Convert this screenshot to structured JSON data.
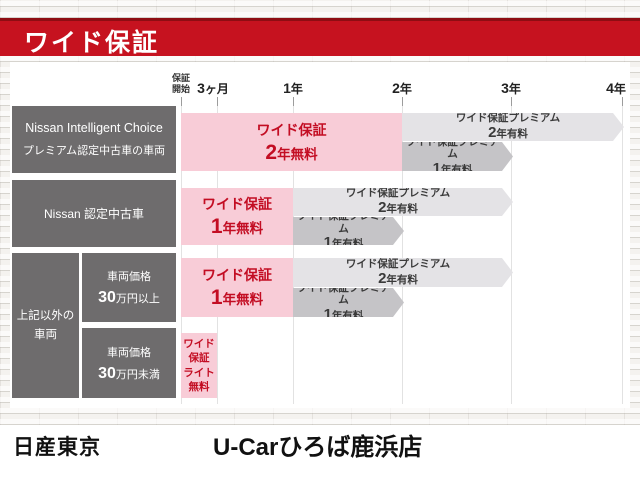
{
  "header": {
    "title": "ワイド保証"
  },
  "colors": {
    "accent_red": "#c6121f",
    "pink": "#f8ccd7",
    "text_red": "#c30d23",
    "arrow_light": "#e4e3e6",
    "arrow_dark": "#c5c4c7",
    "label_gray": "#6e6c6d"
  },
  "chart_data": {
    "type": "gantt",
    "x_axis": {
      "start_label": [
        "保証",
        "開始"
      ],
      "ticks": [
        {
          "label": "3ヶ月",
          "year": 0.25
        },
        {
          "label": "1年",
          "year": 1
        },
        {
          "label": "2年",
          "year": 2
        },
        {
          "label": "3年",
          "year": 3
        },
        {
          "label": "4年",
          "year": 4
        }
      ]
    },
    "categories": [
      {
        "id": "premium",
        "line1": "Nissan Intelligent Choice",
        "line2": "プレミアム認定中古車の車両"
      },
      {
        "id": "certified",
        "line1": "Nissan 認定中古車"
      },
      {
        "id": "other",
        "line1": "上記以外の",
        "line2": "車両"
      },
      {
        "id": "over300k",
        "line1": "車両価格",
        "num": "30",
        "rest": "万円以上"
      },
      {
        "id": "under300k",
        "line1": "車両価格",
        "num": "30",
        "rest": "万円未満"
      }
    ],
    "bars": [
      {
        "row": 1,
        "lane": "full",
        "kind": "free",
        "category": "premium",
        "from_year": 0,
        "to_year": 2,
        "title": "ワイド保証",
        "num": "2",
        "rest": "年無料"
      },
      {
        "row": 1,
        "lane": "top",
        "kind": "paid-light",
        "category": "premium",
        "from_year": 2,
        "to_year": 4,
        "title": "ワイド保証プレミアム",
        "num": "2",
        "rest": "年有料"
      },
      {
        "row": 1,
        "lane": "bottom",
        "kind": "paid-dark",
        "category": "premium",
        "from_year": 2,
        "to_year": 3,
        "title": "ワイド保証プレミアム",
        "num": "1",
        "rest": "年有料"
      },
      {
        "row": 2,
        "lane": "full",
        "kind": "free",
        "category": "certified",
        "from_year": 0,
        "to_year": 1,
        "title": "ワイド保証",
        "num": "1",
        "rest": "年無料"
      },
      {
        "row": 2,
        "lane": "top",
        "kind": "paid-light",
        "category": "certified",
        "from_year": 1,
        "to_year": 3,
        "title": "ワイド保証プレミアム",
        "num": "2",
        "rest": "年有料"
      },
      {
        "row": 2,
        "lane": "bottom",
        "kind": "paid-dark",
        "category": "certified",
        "from_year": 1,
        "to_year": 2,
        "title": "ワイド保証プレミアム",
        "num": "1",
        "rest": "年有料"
      },
      {
        "row": 3,
        "lane": "full",
        "kind": "free",
        "category": "over300k",
        "from_year": 0,
        "to_year": 1,
        "title": "ワイド保証",
        "num": "1",
        "rest": "年無料"
      },
      {
        "row": 3,
        "lane": "top",
        "kind": "paid-light",
        "category": "over300k",
        "from_year": 1,
        "to_year": 3,
        "title": "ワイド保証プレミアム",
        "num": "2",
        "rest": "年有料"
      },
      {
        "row": 3,
        "lane": "bottom",
        "kind": "paid-dark",
        "category": "over300k",
        "from_year": 1,
        "to_year": 2,
        "title": "ワイド保証プレミアム",
        "num": "1",
        "rest": "年有料"
      },
      {
        "row": 4,
        "lane": "full",
        "kind": "lite",
        "category": "under300k",
        "from_year": 0,
        "to_year": 0.25,
        "lines": [
          "ワイド",
          "保証",
          "ライト",
          "無料"
        ]
      }
    ]
  },
  "footer": {
    "company": "日産東京",
    "store": "U-Carひろば鹿浜店"
  }
}
